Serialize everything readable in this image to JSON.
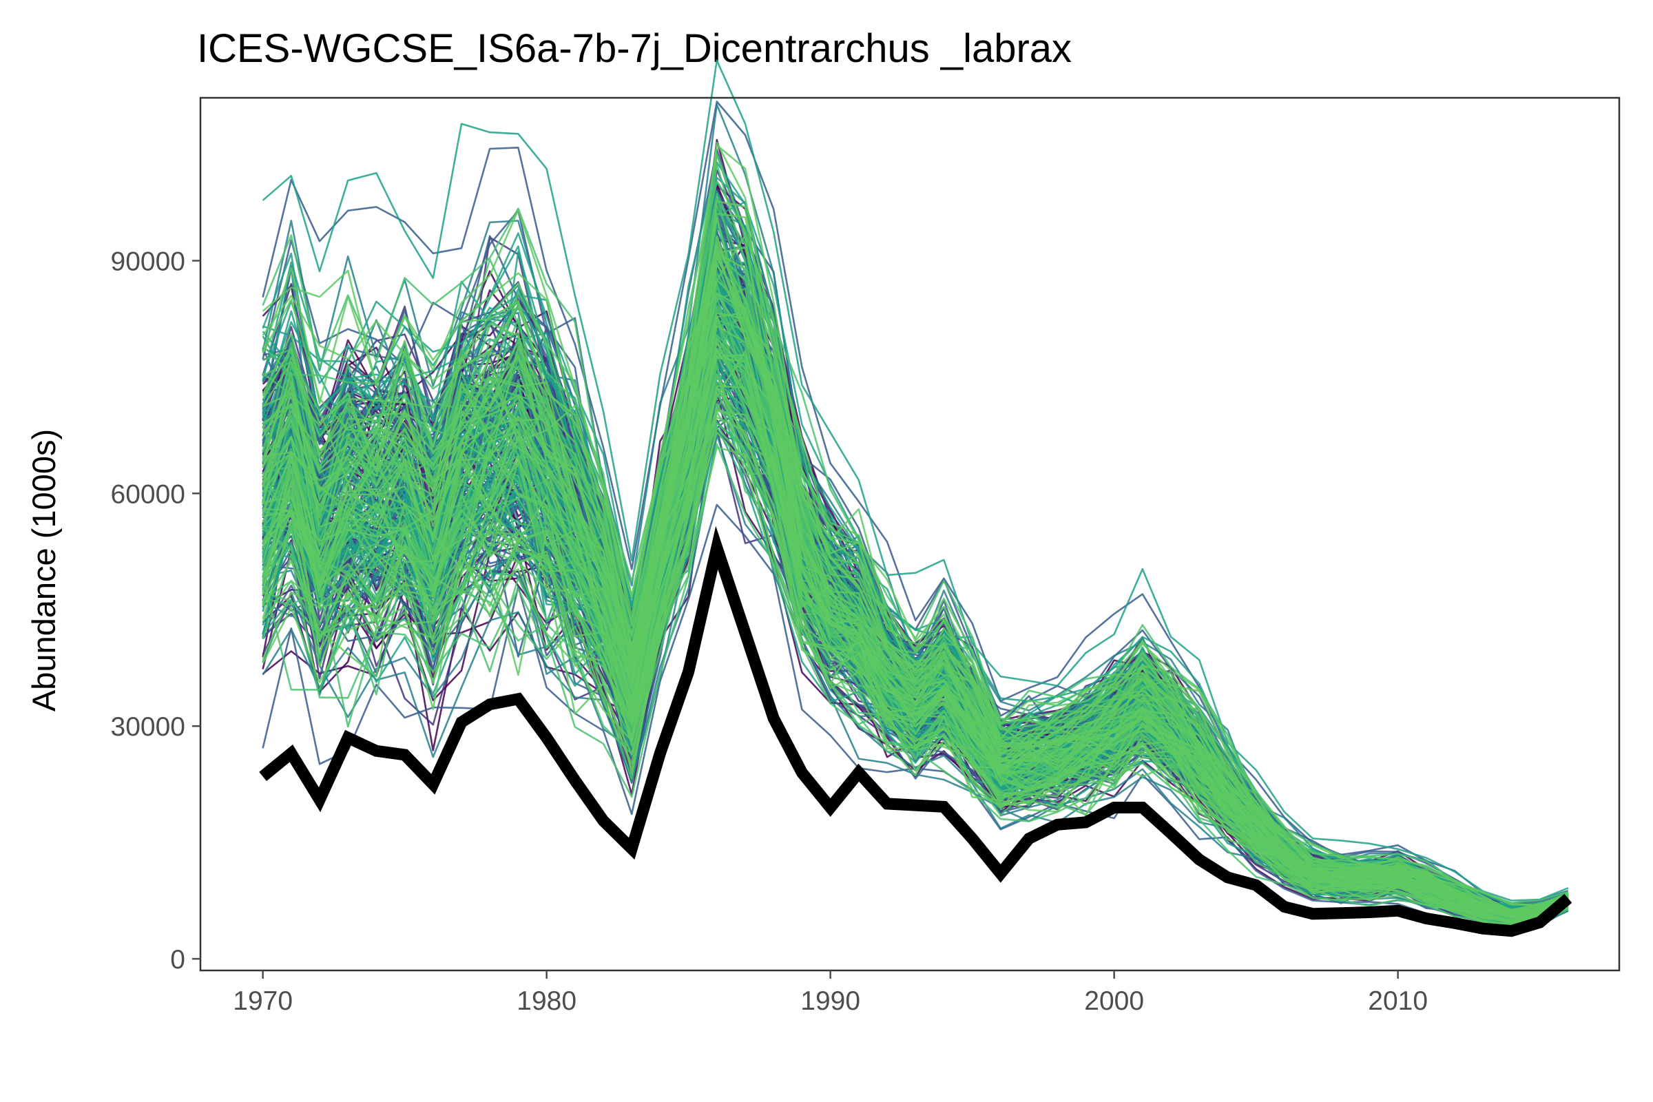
{
  "chart_data": {
    "type": "line",
    "title": "ICES-WGCSE_IS6a-7b-7j_Dicentrarchus _labrax",
    "xlabel": "",
    "ylabel": "Abundance (1000s)",
    "xlim": [
      1967.8,
      2017.8
    ],
    "ylim": [
      -1500,
      111000
    ],
    "x_ticks": [
      1970,
      1980,
      1990,
      2000,
      2010
    ],
    "y_ticks": [
      0,
      30000,
      60000,
      90000
    ],
    "x_tick_labels": [
      "1970",
      "1980",
      "1990",
      "2000",
      "2010"
    ],
    "y_tick_labels": [
      "0",
      "30000",
      "60000",
      "90000"
    ],
    "grid": false,
    "legend": "none",
    "ensemble": {
      "description_hidden": true,
      "palette": [
        "#440154",
        "#46327e",
        "#365c8d",
        "#277f8e",
        "#1fa187",
        "#4ac16d",
        "#5ec962"
      ],
      "members": 300,
      "years": [
        1970,
        1971,
        1972,
        1973,
        1974,
        1975,
        1976,
        1977,
        1978,
        1979,
        1980,
        1981,
        1982,
        1983,
        1984,
        1985,
        1986,
        1987,
        1988,
        1989,
        1990,
        1991,
        1992,
        1993,
        1994,
        1995,
        1996,
        1997,
        1998,
        1999,
        2000,
        2001,
        2002,
        2003,
        2004,
        2005,
        2006,
        2007,
        2008,
        2009,
        2010,
        2011,
        2012,
        2013,
        2014,
        2015,
        2016
      ],
      "center": [
        60000,
        66000,
        55000,
        60000,
        59000,
        61000,
        55000,
        64000,
        66000,
        68000,
        62000,
        55000,
        47000,
        35000,
        52000,
        66000,
        85000,
        79000,
        68000,
        53000,
        46000,
        43000,
        37000,
        33000,
        36000,
        31000,
        25000,
        26000,
        26500,
        28000,
        30000,
        33000,
        30000,
        26000,
        21000,
        17000,
        13500,
        11000,
        10500,
        10500,
        10800,
        9500,
        8000,
        6500,
        5500,
        6000,
        7500
      ],
      "spread": [
        12000,
        12000,
        11000,
        11500,
        11500,
        11500,
        11000,
        12000,
        12000,
        12500,
        11500,
        10500,
        8000,
        6000,
        7000,
        8500,
        10000,
        10000,
        8500,
        7500,
        6500,
        6000,
        5000,
        4500,
        5000,
        4500,
        3500,
        3500,
        3500,
        3800,
        4200,
        4500,
        4200,
        3800,
        3000,
        2400,
        1800,
        1500,
        1400,
        1400,
        1400,
        1300,
        1100,
        900,
        700,
        600,
        500
      ]
    },
    "series": [
      {
        "name": "",
        "color": "#000000",
        "x": [
          1970,
          1971,
          1972,
          1973,
          1974,
          1975,
          1976,
          1977,
          1978,
          1979,
          1980,
          1981,
          1982,
          1983,
          1984,
          1985,
          1986,
          1987,
          1988,
          1989,
          1990,
          1991,
          1992,
          1993,
          1994,
          1995,
          1996,
          1997,
          1998,
          1999,
          2000,
          2001,
          2002,
          2003,
          2004,
          2005,
          2006,
          2007,
          2008,
          2009,
          2010,
          2011,
          2012,
          2013,
          2014,
          2015,
          2016
        ],
        "y": [
          23500,
          26500,
          20500,
          28500,
          26800,
          26300,
          22500,
          30500,
          32800,
          33500,
          28500,
          23000,
          17800,
          14200,
          26500,
          37000,
          53000,
          42000,
          31000,
          24000,
          19500,
          24000,
          20000,
          19800,
          19600,
          15500,
          11000,
          15500,
          17300,
          17600,
          19500,
          19500,
          16200,
          12800,
          10500,
          9500,
          6700,
          5800,
          5900,
          6000,
          6200,
          5200,
          4600,
          3900,
          3600,
          4700,
          7800
        ]
      }
    ],
    "axis_color": "#4d4d4d",
    "panel_border_color": "#333333"
  }
}
